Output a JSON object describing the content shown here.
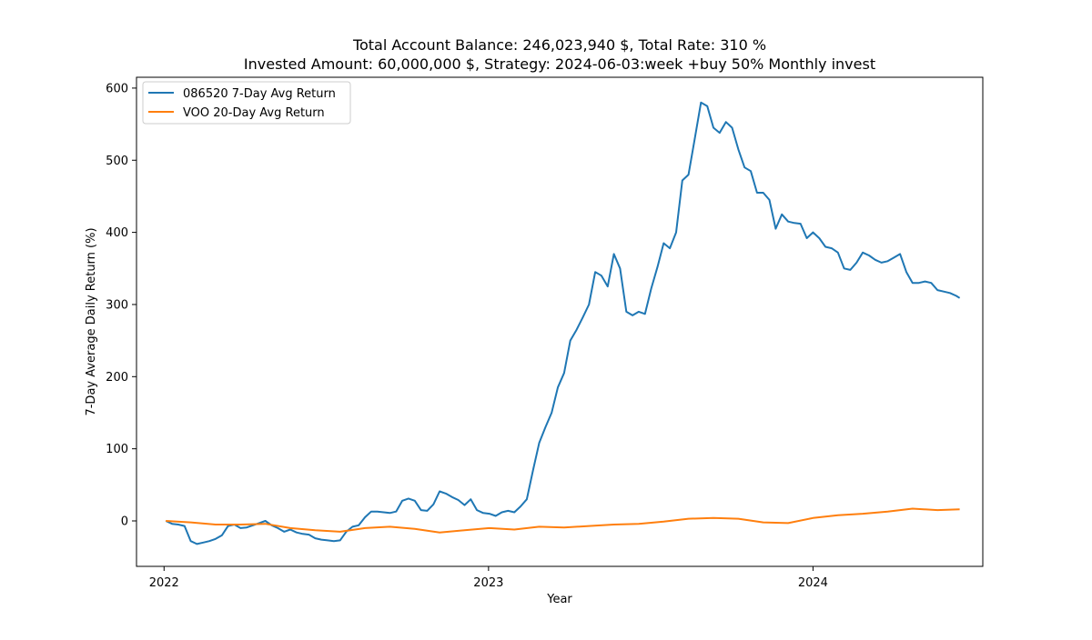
{
  "chart_data": {
    "type": "line",
    "title_line1": "Total Account Balance: 246,023,940 $, Total Rate: 310 %",
    "title_line2": "Invested Amount: 60,000,000 $, Strategy: 2024-06-03:week +buy 50% Monthly invest",
    "xlabel": "Year",
    "ylabel": "7-Day Average Daily Return (%)",
    "xlim": [
      "2021-12-01",
      "2024-07-10"
    ],
    "ylim": [
      -63,
      615
    ],
    "x_ticks": [
      {
        "label": "2022",
        "date": "2022-01-01"
      },
      {
        "label": "2023",
        "date": "2023-01-01"
      },
      {
        "label": "2024",
        "date": "2024-01-01"
      }
    ],
    "y_ticks": [
      0,
      100,
      200,
      300,
      400,
      500,
      600
    ],
    "grid": false,
    "legend_position": "upper-left",
    "series": [
      {
        "name": "086520 7-Day Avg Return",
        "color": "#1f77b4",
        "points": [
          [
            "2022-01-03",
            0
          ],
          [
            "2022-01-10",
            -4
          ],
          [
            "2022-01-17",
            -5
          ],
          [
            "2022-01-24",
            -7
          ],
          [
            "2022-01-31",
            -28
          ],
          [
            "2022-02-07",
            -32
          ],
          [
            "2022-02-14",
            -30
          ],
          [
            "2022-02-21",
            -28
          ],
          [
            "2022-02-28",
            -25
          ],
          [
            "2022-03-07",
            -20
          ],
          [
            "2022-03-14",
            -7
          ],
          [
            "2022-03-21",
            -5
          ],
          [
            "2022-03-28",
            -10
          ],
          [
            "2022-04-04",
            -9
          ],
          [
            "2022-04-11",
            -6
          ],
          [
            "2022-04-18",
            -3
          ],
          [
            "2022-04-25",
            0
          ],
          [
            "2022-05-02",
            -6
          ],
          [
            "2022-05-09",
            -10
          ],
          [
            "2022-05-16",
            -15
          ],
          [
            "2022-05-23",
            -12
          ],
          [
            "2022-05-30",
            -16
          ],
          [
            "2022-06-06",
            -18
          ],
          [
            "2022-06-13",
            -19
          ],
          [
            "2022-06-20",
            -24
          ],
          [
            "2022-06-27",
            -26
          ],
          [
            "2022-07-04",
            -27
          ],
          [
            "2022-07-11",
            -28
          ],
          [
            "2022-07-18",
            -27
          ],
          [
            "2022-07-25",
            -15
          ],
          [
            "2022-08-01",
            -8
          ],
          [
            "2022-08-08",
            -6
          ],
          [
            "2022-08-15",
            5
          ],
          [
            "2022-08-22",
            13
          ],
          [
            "2022-08-29",
            13
          ],
          [
            "2022-09-05",
            12
          ],
          [
            "2022-09-12",
            11
          ],
          [
            "2022-09-19",
            13
          ],
          [
            "2022-09-26",
            28
          ],
          [
            "2022-10-03",
            31
          ],
          [
            "2022-10-10",
            28
          ],
          [
            "2022-10-17",
            15
          ],
          [
            "2022-10-24",
            14
          ],
          [
            "2022-10-31",
            23
          ],
          [
            "2022-11-07",
            41
          ],
          [
            "2022-11-14",
            38
          ],
          [
            "2022-11-21",
            33
          ],
          [
            "2022-11-28",
            29
          ],
          [
            "2022-12-05",
            22
          ],
          [
            "2022-12-12",
            30
          ],
          [
            "2022-12-19",
            15
          ],
          [
            "2022-12-26",
            11
          ],
          [
            "2023-01-02",
            10
          ],
          [
            "2023-01-09",
            7
          ],
          [
            "2023-01-16",
            12
          ],
          [
            "2023-01-23",
            14
          ],
          [
            "2023-01-30",
            12
          ],
          [
            "2023-02-06",
            20
          ],
          [
            "2023-02-13",
            30
          ],
          [
            "2023-02-20",
            70
          ],
          [
            "2023-02-27",
            108
          ],
          [
            "2023-03-06",
            130
          ],
          [
            "2023-03-13",
            150
          ],
          [
            "2023-03-20",
            185
          ],
          [
            "2023-03-27",
            205
          ],
          [
            "2023-04-03",
            250
          ],
          [
            "2023-04-10",
            265
          ],
          [
            "2023-04-17",
            282
          ],
          [
            "2023-04-24",
            300
          ],
          [
            "2023-05-01",
            345
          ],
          [
            "2023-05-08",
            340
          ],
          [
            "2023-05-15",
            325
          ],
          [
            "2023-05-22",
            370
          ],
          [
            "2023-05-29",
            350
          ],
          [
            "2023-06-05",
            290
          ],
          [
            "2023-06-12",
            285
          ],
          [
            "2023-06-19",
            290
          ],
          [
            "2023-06-26",
            287
          ],
          [
            "2023-07-03",
            322
          ],
          [
            "2023-07-10",
            352
          ],
          [
            "2023-07-17",
            385
          ],
          [
            "2023-07-24",
            378
          ],
          [
            "2023-07-31",
            400
          ],
          [
            "2023-08-07",
            472
          ],
          [
            "2023-08-14",
            480
          ],
          [
            "2023-08-21",
            530
          ],
          [
            "2023-08-28",
            580
          ],
          [
            "2023-09-04",
            575
          ],
          [
            "2023-09-11",
            545
          ],
          [
            "2023-09-18",
            538
          ],
          [
            "2023-09-25",
            553
          ],
          [
            "2023-10-02",
            545
          ],
          [
            "2023-10-09",
            515
          ],
          [
            "2023-10-16",
            490
          ],
          [
            "2023-10-23",
            485
          ],
          [
            "2023-10-30",
            455
          ],
          [
            "2023-11-06",
            455
          ],
          [
            "2023-11-13",
            445
          ],
          [
            "2023-11-20",
            405
          ],
          [
            "2023-11-27",
            425
          ],
          [
            "2023-12-04",
            415
          ],
          [
            "2023-12-11",
            413
          ],
          [
            "2023-12-18",
            412
          ],
          [
            "2023-12-25",
            392
          ],
          [
            "2024-01-01",
            400
          ],
          [
            "2024-01-08",
            392
          ],
          [
            "2024-01-15",
            380
          ],
          [
            "2024-01-22",
            378
          ],
          [
            "2024-01-29",
            372
          ],
          [
            "2024-02-05",
            350
          ],
          [
            "2024-02-12",
            348
          ],
          [
            "2024-02-19",
            358
          ],
          [
            "2024-02-26",
            372
          ],
          [
            "2024-03-04",
            368
          ],
          [
            "2024-03-11",
            362
          ],
          [
            "2024-03-18",
            358
          ],
          [
            "2024-03-25",
            360
          ],
          [
            "2024-04-01",
            365
          ],
          [
            "2024-04-08",
            370
          ],
          [
            "2024-04-15",
            345
          ],
          [
            "2024-04-22",
            330
          ],
          [
            "2024-04-29",
            330
          ],
          [
            "2024-05-06",
            332
          ],
          [
            "2024-05-13",
            330
          ],
          [
            "2024-05-20",
            320
          ],
          [
            "2024-05-27",
            318
          ],
          [
            "2024-06-03",
            316
          ],
          [
            "2024-06-10",
            312
          ],
          [
            "2024-06-14",
            309
          ]
        ]
      },
      {
        "name": "VOO 20-Day Avg Return",
        "color": "#ff7f0e",
        "points": [
          [
            "2022-01-03",
            0
          ],
          [
            "2022-01-31",
            -2
          ],
          [
            "2022-02-28",
            -5
          ],
          [
            "2022-03-28",
            -5
          ],
          [
            "2022-04-25",
            -4
          ],
          [
            "2022-05-23",
            -10
          ],
          [
            "2022-06-20",
            -13
          ],
          [
            "2022-07-18",
            -15
          ],
          [
            "2022-08-15",
            -10
          ],
          [
            "2022-09-12",
            -8
          ],
          [
            "2022-10-10",
            -11
          ],
          [
            "2022-11-07",
            -16
          ],
          [
            "2022-12-05",
            -13
          ],
          [
            "2023-01-02",
            -10
          ],
          [
            "2023-01-30",
            -12
          ],
          [
            "2023-02-27",
            -8
          ],
          [
            "2023-03-27",
            -9
          ],
          [
            "2023-04-24",
            -7
          ],
          [
            "2023-05-22",
            -5
          ],
          [
            "2023-06-19",
            -4
          ],
          [
            "2023-07-17",
            -1
          ],
          [
            "2023-08-14",
            3
          ],
          [
            "2023-09-11",
            4
          ],
          [
            "2023-10-09",
            3
          ],
          [
            "2023-11-06",
            -2
          ],
          [
            "2023-12-04",
            -3
          ],
          [
            "2024-01-01",
            4
          ],
          [
            "2024-01-29",
            8
          ],
          [
            "2024-02-26",
            10
          ],
          [
            "2024-03-25",
            13
          ],
          [
            "2024-04-22",
            17
          ],
          [
            "2024-05-20",
            15
          ],
          [
            "2024-06-14",
            16
          ]
        ]
      }
    ]
  }
}
